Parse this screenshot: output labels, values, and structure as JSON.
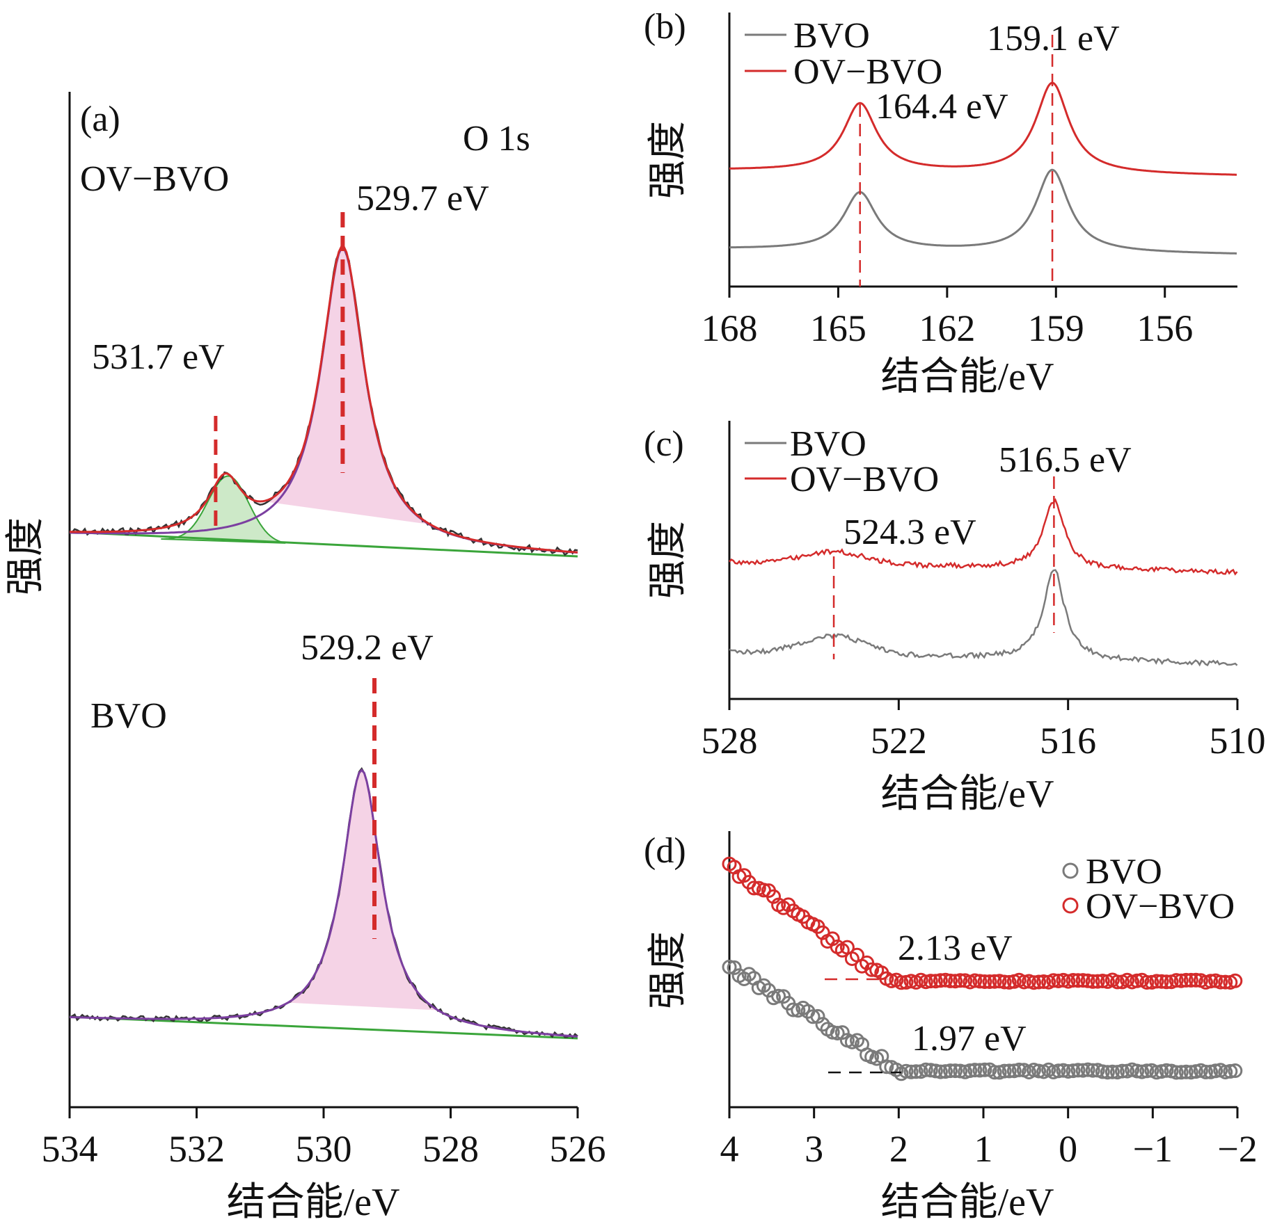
{
  "colors": {
    "bvo": "#7a7a7a",
    "ov_bvo": "#d42b2b",
    "fit_envelope": "#7b3fa0",
    "component_green": "#3aa53a",
    "peak_fill": "#f3c8e0",
    "green_fill": "#cde9c8",
    "marker": "#d42b2b",
    "axis": "#111111"
  },
  "chart_data": [
    {
      "panel": "(a)",
      "type": "line",
      "title": "O 1s",
      "xlabel": "结合能/eV",
      "ylabel": "强度",
      "xlim": [
        534,
        526
      ],
      "x_ticks": [
        "534",
        "532",
        "530",
        "528",
        "526"
      ],
      "grid": false,
      "spectra": [
        {
          "name": "OV−BVO",
          "peaks": [
            {
              "label": "529.7 eV",
              "position": 529.7,
              "relative_height": 1.0
            },
            {
              "label": "531.7 eV",
              "position": 531.7,
              "relative_height": 0.22
            }
          ]
        },
        {
          "name": "BVO",
          "peaks": [
            {
              "label": "529.2 eV",
              "position": 529.2,
              "relative_height": 1.0
            }
          ]
        }
      ]
    },
    {
      "panel": "(b)",
      "type": "line",
      "xlabel": "结合能/eV",
      "ylabel": "强度",
      "xlim": [
        168,
        154
      ],
      "x_ticks": [
        "168",
        "165",
        "162",
        "159",
        "156"
      ],
      "legend": {
        "position": "top-left",
        "entries": [
          "BVO",
          "OV−BVO"
        ]
      },
      "grid": false,
      "series": [
        {
          "name": "BVO",
          "peaks": [
            164.4,
            159.1
          ],
          "relative_heights": [
            0.7,
            1.0
          ]
        },
        {
          "name": "OV−BVO",
          "peaks": [
            164.4,
            159.1
          ],
          "relative_heights": [
            0.75,
            1.0
          ]
        }
      ],
      "annotations": [
        "164.4 eV",
        "159.1 eV"
      ]
    },
    {
      "panel": "(c)",
      "type": "line",
      "xlabel": "结合能/eV",
      "ylabel": "强度",
      "xlim": [
        528,
        510
      ],
      "x_ticks": [
        "528",
        "522",
        "516",
        "510"
      ],
      "legend": {
        "position": "top-left",
        "entries": [
          "BVO",
          "OV−BVO"
        ]
      },
      "grid": false,
      "series": [
        {
          "name": "BVO",
          "peaks": [
            524.3,
            516.5
          ],
          "relative_heights": [
            0.2,
            1.0
          ]
        },
        {
          "name": "OV−BVO",
          "peaks": [
            524.3,
            516.5
          ],
          "relative_heights": [
            0.15,
            1.0
          ]
        }
      ],
      "annotations": [
        "524.3 eV",
        "516.5 eV"
      ]
    },
    {
      "panel": "(d)",
      "type": "scatter",
      "xlabel": "结合能/eV",
      "ylabel": "强度",
      "xlim": [
        4,
        -2
      ],
      "x_ticks": [
        "4",
        "3",
        "2",
        "1",
        "0",
        "−1",
        "−2"
      ],
      "legend": {
        "position": "top-right",
        "entries": [
          "BVO",
          "OV−BVO"
        ]
      },
      "grid": false,
      "series": [
        {
          "name": "BVO",
          "band_edge": 1.97
        },
        {
          "name": "OV−BVO",
          "band_edge": 2.13
        }
      ],
      "annotations": [
        "2.13 eV",
        "1.97 eV"
      ]
    }
  ],
  "labels": {
    "panel_a": "(a)",
    "panel_b": "(b)",
    "panel_c": "(c)",
    "panel_d": "(d)",
    "o1s": "O 1s",
    "ov_bvo": "OV−BVO",
    "bvo": "BVO",
    "a_peak_ov_main": "529.7 eV",
    "a_peak_ov_side": "531.7 eV",
    "a_peak_bvo_main": "529.2 eV",
    "b_peak_1": "164.4 eV",
    "b_peak_2": "159.1 eV",
    "c_peak_1": "524.3 eV",
    "c_peak_2": "516.5 eV",
    "d_edge_ov": "2.13 eV",
    "d_edge_bvo": "1.97 eV",
    "xlabel": "结合能/eV",
    "ylabel": "强度"
  }
}
